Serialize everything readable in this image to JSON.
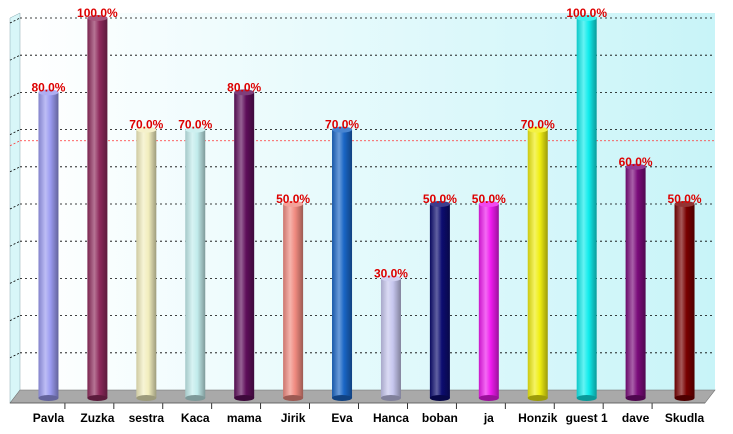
{
  "chart_data": {
    "type": "bar",
    "categories": [
      "Pavla",
      "Zuzka",
      "sestra",
      "Kaca",
      "mama",
      "Jirik",
      "Eva",
      "Hanca",
      "boban",
      "ja",
      "Honzik",
      "guest 1",
      "dave",
      "Skudla"
    ],
    "values": [
      80,
      100,
      70,
      70,
      80,
      50,
      70,
      30,
      50,
      50,
      70,
      100,
      60,
      50
    ],
    "value_labels": [
      "80.0%",
      "100.0%",
      "70.0%",
      "70.0%",
      "80.0%",
      "50.0%",
      "70.0%",
      "30.0%",
      "50.0%",
      "50.0%",
      "70.0%",
      "100.0%",
      "60.0%",
      "50.0%"
    ],
    "bar_colors": [
      "#9a9af0",
      "#8e2a5c",
      "#f2eebe",
      "#c2ecec",
      "#5e0e5a",
      "#f08a80",
      "#1a66c6",
      "#c6c6ee",
      "#0c0c70",
      "#ee1aee",
      "#f0ee10",
      "#10ecec",
      "#7a0a7a",
      "#780000"
    ],
    "ylim": [
      0,
      100
    ],
    "reference_line": 67,
    "grid": true,
    "title": "",
    "xlabel": "",
    "ylabel": ""
  }
}
